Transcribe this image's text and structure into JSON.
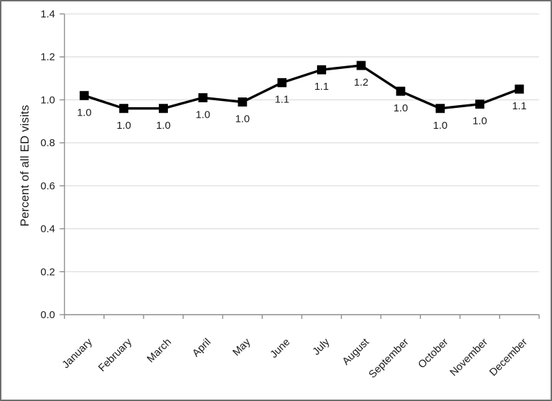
{
  "figure": {
    "background": "#ffffff",
    "frame_color": "#6e6e6e"
  },
  "chart_data": {
    "type": "line",
    "title": "",
    "xlabel": "",
    "ylabel": "Percent of all ED visits",
    "categories": [
      "January",
      "February",
      "March",
      "April",
      "May",
      "June",
      "July",
      "August",
      "September",
      "October",
      "November",
      "December"
    ],
    "series": [
      {
        "name": "Percent of all ED visits",
        "values": [
          1.02,
          0.96,
          0.96,
          1.01,
          0.99,
          1.08,
          1.14,
          1.16,
          1.04,
          0.96,
          0.98,
          1.05
        ],
        "point_labels": [
          "1.0",
          "1.0",
          "1.0",
          "1.0",
          "1.0",
          "1.1",
          "1.1",
          "1.2",
          "1.0",
          "1.0",
          "1.0",
          "1.1"
        ],
        "color": "#000000",
        "marker": "square",
        "line_width": 3.5
      }
    ],
    "ylim": [
      0.0,
      1.4
    ],
    "ytick_interval": 0.2,
    "ytick_labels": [
      "0.0",
      "0.2",
      "0.4",
      "0.6",
      "0.8",
      "1.0",
      "1.2",
      "1.4"
    ],
    "grid": "horizontal",
    "legend": "none",
    "x_label_rotation_deg": -45,
    "colors": {
      "gridline": "#d4d4d4",
      "axis": "#8c8c8c",
      "text": "#1a1a1a"
    }
  }
}
